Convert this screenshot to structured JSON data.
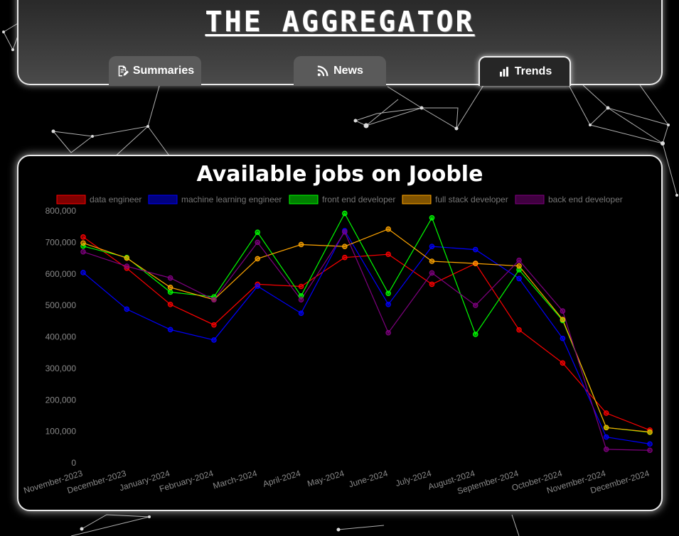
{
  "app": {
    "title": "THE AGGREGATOR"
  },
  "tabs": [
    {
      "label": "Summaries",
      "icon": "document-edit-icon",
      "active": false
    },
    {
      "label": "News",
      "icon": "rss-icon",
      "active": false
    },
    {
      "label": "Trends",
      "icon": "bar-chart-icon",
      "active": true
    }
  ],
  "colors": {
    "background": "#000000",
    "panel_border": "#e8e8e8",
    "tab_inactive": "#5a5a5a",
    "tab_active": "#262626"
  },
  "chart_data": {
    "type": "line",
    "title": "Available jobs on Jooble",
    "legend_position": "top",
    "grid": false,
    "categories": [
      "November-2023",
      "December-2023",
      "January-2024",
      "February-2024",
      "March-2024",
      "April-2024",
      "May-2024",
      "June-2024",
      "July-2024",
      "August-2024",
      "September-2024",
      "October-2024",
      "November-2024",
      "December-2024"
    ],
    "ylim": [
      0,
      800000
    ],
    "yticks": [
      "800,000",
      "700,000",
      "600,000",
      "500,000",
      "400,000",
      "300,000",
      "200,000",
      "100,000",
      "0"
    ],
    "series": [
      {
        "name": "data engineer",
        "color": "#ff0000",
        "values": [
          717000,
          618000,
          503000,
          438000,
          567000,
          560000,
          652000,
          662000,
          567000,
          633000,
          422000,
          317000,
          158000,
          104000
        ]
      },
      {
        "name": "machine learning engineer",
        "color": "#0000ff",
        "values": [
          604000,
          488000,
          423000,
          390000,
          561000,
          475000,
          737000,
          503000,
          687000,
          677000,
          585000,
          395000,
          82000,
          60000
        ]
      },
      {
        "name": "front end developer",
        "color": "#00ff00",
        "values": [
          688000,
          652000,
          542000,
          527000,
          732000,
          530000,
          792000,
          538000,
          778000,
          408000,
          613000,
          452000,
          112000,
          97000
        ]
      },
      {
        "name": "full stack developer",
        "color": "#ffa500",
        "values": [
          698000,
          650000,
          557000,
          518000,
          648000,
          693000,
          687000,
          742000,
          640000,
          633000,
          625000,
          455000,
          112000,
          98000
        ]
      },
      {
        "name": "back end developer",
        "color": "#800080",
        "values": [
          670000,
          624000,
          587000,
          518000,
          700000,
          518000,
          733000,
          413000,
          603000,
          500000,
          643000,
          482000,
          43000,
          40000
        ]
      }
    ]
  }
}
